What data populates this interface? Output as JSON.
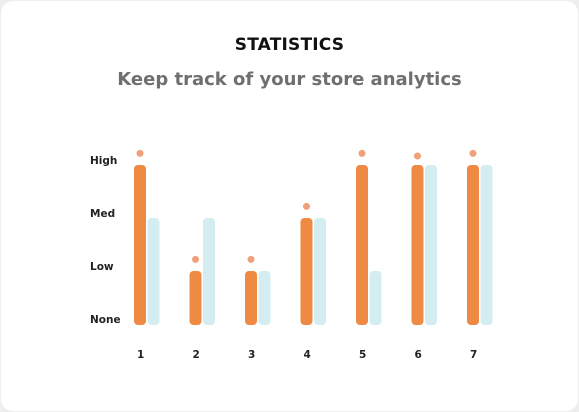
{
  "header": {
    "title": "STATISTICS",
    "subtitle": "Keep track of your store analytics"
  },
  "colors": {
    "primary_bar": "#ee8a43",
    "secondary_bar": "#d4edf1",
    "marker": "#f0a07a",
    "text": "#222222"
  },
  "chart_data": {
    "type": "bar",
    "categories": [
      "1",
      "2",
      "3",
      "4",
      "5",
      "6",
      "7"
    ],
    "levels": [
      "None",
      "Low",
      "Med",
      "High"
    ],
    "ylim": [
      0,
      3
    ],
    "series": [
      {
        "color": "#ee8a43",
        "values": [
          3,
          1,
          1,
          2,
          3,
          3,
          3
        ]
      },
      {
        "color": "#d4edf1",
        "values": [
          2,
          2,
          1,
          2,
          1,
          3,
          3
        ]
      }
    ],
    "marker_values": [
      3.2,
      1.2,
      1.2,
      2.2,
      3.2,
      3.15,
      3.2
    ]
  }
}
